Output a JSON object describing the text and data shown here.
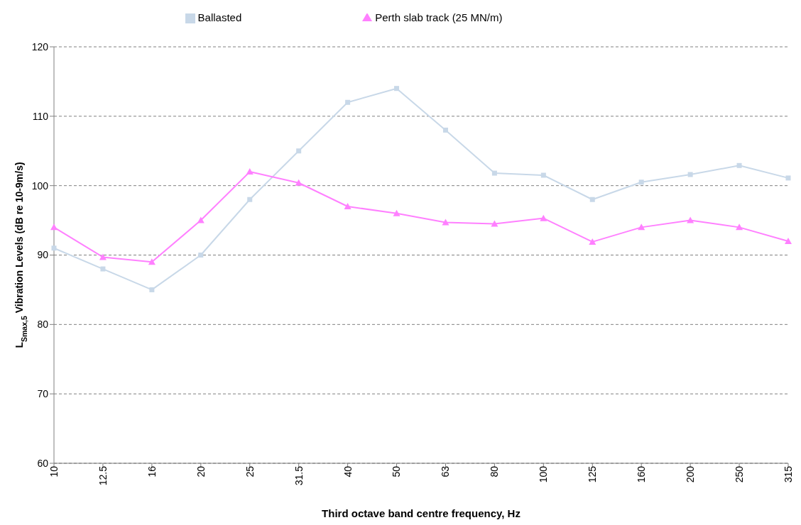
{
  "chart_data": {
    "type": "line",
    "xlabel": "Third octave band centre frequency, Hz",
    "ylabel": "L$_{Smax,5}$ Vibration Levels (dB re 10-9m/s)",
    "categories": [
      "10",
      "12.5",
      "16",
      "20",
      "25",
      "31.5",
      "40",
      "50",
      "63",
      "80",
      "100",
      "125",
      "160",
      "200",
      "250",
      "315"
    ],
    "series": [
      {
        "name": "Ballasted",
        "color": "#c8d8e8",
        "marker": "square",
        "values": [
          91,
          88,
          85,
          90,
          98,
          105,
          112,
          114,
          108,
          101.8,
          101.5,
          98,
          100.5,
          101.6,
          102.9,
          101.1
        ]
      },
      {
        "name": "Perth slab track (25 MN/m)",
        "color": "#ff80ff",
        "marker": "triangle",
        "values": [
          94,
          89.7,
          89,
          95,
          102,
          100.4,
          97,
          96,
          94.7,
          94.5,
          95.3,
          91.9,
          94,
          95,
          94,
          92
        ]
      }
    ],
    "ylim": [
      60,
      120
    ],
    "yticks": [
      60,
      70,
      80,
      90,
      100,
      110,
      120
    ],
    "grid": "y",
    "legend": "top",
    "line_style": "solid"
  }
}
